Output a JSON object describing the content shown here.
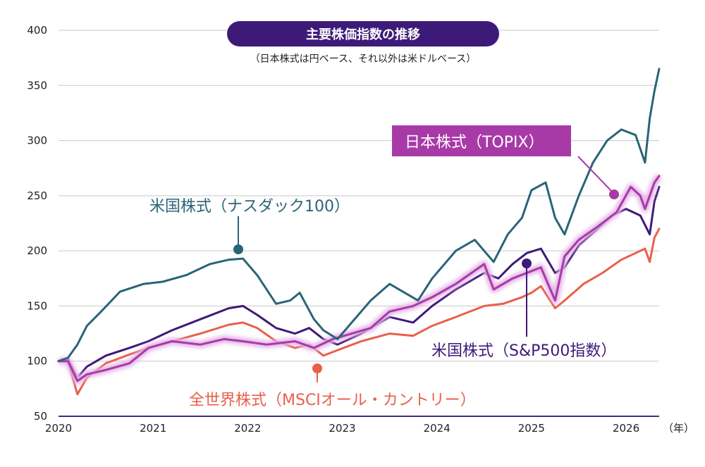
{
  "chart_data": {
    "type": "line",
    "title": "主要株価指数の推移",
    "subtitle": "（日本株式は円ベース、それ以外は米ドルベース）",
    "xlabel": "",
    "ylabel": "",
    "x_unit": "（年）",
    "xlim": [
      2020.0,
      2026.35
    ],
    "ylim": [
      50,
      400
    ],
    "yticks": [
      50,
      100,
      150,
      200,
      250,
      300,
      350,
      400
    ],
    "xticks": [
      2020,
      2021,
      2022,
      2023,
      2024,
      2025,
      2026
    ],
    "grid": "horizontal",
    "series": [
      {
        "name": "米国株式（ナスダック100）",
        "color": "#2a6478",
        "label_color": "#2a6478",
        "x": [
          2020.0,
          2020.1,
          2020.2,
          2020.3,
          2020.45,
          2020.65,
          2020.9,
          2021.1,
          2021.35,
          2021.6,
          2021.8,
          2021.95,
          2022.1,
          2022.3,
          2022.45,
          2022.55,
          2022.7,
          2022.8,
          2022.95,
          2023.1,
          2023.3,
          2023.5,
          2023.6,
          2023.8,
          2023.95,
          2024.2,
          2024.4,
          2024.6,
          2024.75,
          2024.9,
          2025.0,
          2025.15,
          2025.25,
          2025.35,
          2025.5,
          2025.65,
          2025.8,
          2025.95,
          2026.1,
          2026.2,
          2026.25,
          2026.3,
          2026.35
        ],
        "values": [
          100,
          103,
          115,
          132,
          145,
          163,
          170,
          172,
          178,
          188,
          192,
          193,
          178,
          152,
          155,
          162,
          138,
          128,
          120,
          135,
          155,
          170,
          165,
          155,
          175,
          200,
          210,
          190,
          215,
          230,
          255,
          262,
          230,
          215,
          250,
          280,
          300,
          310,
          305,
          280,
          320,
          345,
          365
        ]
      },
      {
        "name": "米国株式（S&P500指数）",
        "color": "#3e1a78",
        "label_color": "#3e1a78",
        "x": [
          2020.0,
          2020.1,
          2020.2,
          2020.3,
          2020.5,
          2020.75,
          2020.95,
          2021.2,
          2021.5,
          2021.8,
          2021.95,
          2022.1,
          2022.3,
          2022.5,
          2022.65,
          2022.8,
          2022.95,
          2023.2,
          2023.5,
          2023.75,
          2023.95,
          2024.2,
          2024.5,
          2024.65,
          2024.8,
          2024.95,
          2025.1,
          2025.25,
          2025.35,
          2025.5,
          2025.7,
          2025.85,
          2026.0,
          2026.15,
          2026.25,
          2026.3,
          2026.35
        ],
        "values": [
          100,
          102,
          85,
          95,
          105,
          112,
          118,
          128,
          138,
          148,
          150,
          142,
          130,
          125,
          130,
          120,
          115,
          125,
          140,
          135,
          150,
          165,
          180,
          175,
          188,
          198,
          202,
          180,
          185,
          205,
          220,
          232,
          238,
          232,
          215,
          245,
          258
        ]
      },
      {
        "name": "日本株式（TOPIX）",
        "color": "#a83aa8",
        "label_color": "#a83aa8",
        "x": [
          2020.0,
          2020.1,
          2020.2,
          2020.3,
          2020.5,
          2020.75,
          2020.95,
          2021.2,
          2021.5,
          2021.75,
          2021.95,
          2022.2,
          2022.5,
          2022.7,
          2022.9,
          2023.1,
          2023.3,
          2023.5,
          2023.75,
          2023.95,
          2024.2,
          2024.5,
          2024.6,
          2024.8,
          2024.95,
          2025.1,
          2025.25,
          2025.35,
          2025.5,
          2025.7,
          2025.9,
          2026.05,
          2026.15,
          2026.2,
          2026.3,
          2026.35
        ],
        "values": [
          100,
          100,
          82,
          88,
          92,
          98,
          112,
          118,
          115,
          120,
          118,
          115,
          118,
          112,
          120,
          125,
          130,
          145,
          150,
          158,
          170,
          188,
          165,
          175,
          180,
          185,
          155,
          195,
          210,
          222,
          235,
          258,
          250,
          238,
          262,
          268
        ]
      },
      {
        "name": "全世界株式（MSCIオール・カントリー）",
        "color": "#e8604c",
        "label_color": "#e8604c",
        "x": [
          2020.0,
          2020.1,
          2020.2,
          2020.3,
          2020.5,
          2020.75,
          2020.95,
          2021.2,
          2021.5,
          2021.8,
          2021.95,
          2022.1,
          2022.3,
          2022.5,
          2022.65,
          2022.8,
          2022.95,
          2023.2,
          2023.5,
          2023.75,
          2023.95,
          2024.2,
          2024.5,
          2024.7,
          2024.9,
          2025.0,
          2025.1,
          2025.25,
          2025.35,
          2025.55,
          2025.75,
          2025.95,
          2026.1,
          2026.2,
          2026.25,
          2026.3,
          2026.35
        ],
        "values": [
          100,
          100,
          70,
          85,
          98,
          106,
          112,
          118,
          125,
          133,
          135,
          130,
          118,
          112,
          115,
          105,
          110,
          118,
          125,
          123,
          132,
          140,
          150,
          152,
          158,
          162,
          168,
          148,
          155,
          170,
          180,
          192,
          198,
          202,
          190,
          212,
          220
        ]
      }
    ]
  }
}
